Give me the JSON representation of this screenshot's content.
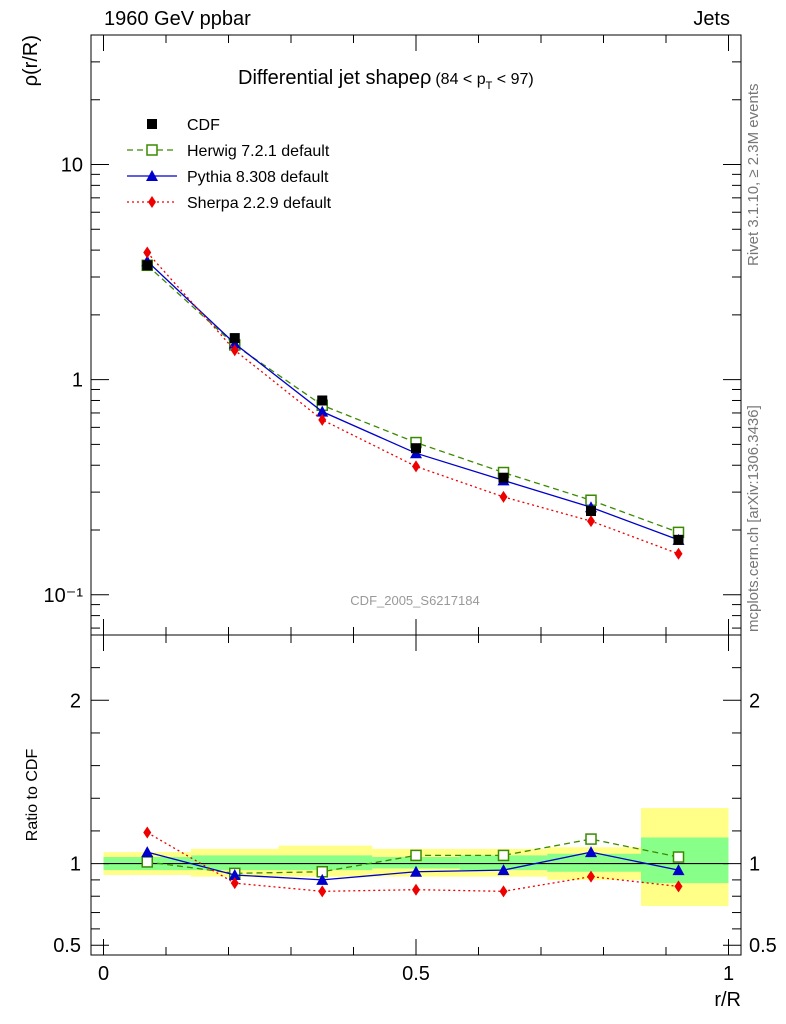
{
  "header": {
    "left": "1960 GeV ppbar",
    "right": "Jets"
  },
  "side_labels": {
    "rivet": "Rivet 3.1.10, ≥ 2.3M events",
    "mcplots": "mcplots.cern.ch [arXiv:1306.3436]"
  },
  "colors": {
    "cdf": "#000000",
    "herwig": "#3a8a00",
    "pythia": "#0000cc",
    "sherpa": "#ee0000",
    "band_inner": "#88ff88",
    "band_outer": "#ffff88"
  },
  "chart_data": [
    {
      "type": "line",
      "title": "Differential jet shapeρ",
      "title_sub": "(84 < p",
      "title_sub_subscript": "T",
      "title_sub_tail": " < 97)",
      "watermark": "CDF_2005_S6217184",
      "ylabel": "ρ(r/R)",
      "xlabel": "",
      "yscale": "log",
      "ylim": [
        0.065,
        40
      ],
      "xlim": [
        -0.02,
        1.02
      ],
      "y_tick_labels": [
        "10",
        "1",
        "10⁻¹"
      ],
      "legend_position": "top-left",
      "x": [
        0.07,
        0.21,
        0.35,
        0.5,
        0.64,
        0.78,
        0.92
      ],
      "series": [
        {
          "name": "CDF",
          "style": "data",
          "values": [
            3.4,
            1.56,
            0.8,
            0.48,
            0.35,
            0.245,
            0.18
          ]
        },
        {
          "name": "Herwig 7.2.1 default",
          "style": "herwig",
          "values": [
            3.4,
            1.45,
            0.76,
            0.51,
            0.37,
            0.275,
            0.195
          ]
        },
        {
          "name": "Pythia 8.308 default",
          "style": "pythia",
          "values": [
            3.55,
            1.47,
            0.71,
            0.455,
            0.34,
            0.255,
            0.18
          ]
        },
        {
          "name": "Sherpa 2.2.9 default",
          "style": "sherpa",
          "values": [
            3.9,
            1.37,
            0.65,
            0.395,
            0.285,
            0.22,
            0.155
          ]
        }
      ]
    },
    {
      "type": "line",
      "ylabel": "Ratio to CDF",
      "xlabel": "r/R",
      "ylim": [
        0.44,
        2.4
      ],
      "xlim": [
        -0.02,
        1.02
      ],
      "y_tick_labels": [
        "0.5",
        "1",
        "2"
      ],
      "x_tick_labels": [
        "0",
        "0.5",
        "1"
      ],
      "bands": [
        {
          "x": [
            0.0,
            0.14
          ],
          "inner": [
            0.96,
            1.04
          ],
          "outer": [
            0.93,
            1.07
          ]
        },
        {
          "x": [
            0.14,
            0.28
          ],
          "inner": [
            0.96,
            1.05
          ],
          "outer": [
            0.92,
            1.09
          ]
        },
        {
          "x": [
            0.28,
            0.43
          ],
          "inner": [
            0.96,
            1.05
          ],
          "outer": [
            0.92,
            1.11
          ]
        },
        {
          "x": [
            0.43,
            0.57
          ],
          "inner": [
            0.97,
            1.04
          ],
          "outer": [
            0.92,
            1.09
          ]
        },
        {
          "x": [
            0.57,
            0.71
          ],
          "inner": [
            0.96,
            1.05
          ],
          "outer": [
            0.92,
            1.09
          ]
        },
        {
          "x": [
            0.71,
            0.86
          ],
          "inner": [
            0.95,
            1.06
          ],
          "outer": [
            0.9,
            1.1
          ]
        },
        {
          "x": [
            0.86,
            1.0
          ],
          "inner": [
            0.88,
            1.16
          ],
          "outer": [
            0.74,
            1.34
          ]
        }
      ],
      "x": [
        0.07,
        0.21,
        0.35,
        0.5,
        0.64,
        0.78,
        0.92
      ],
      "series": [
        {
          "name": "Herwig 7.2.1 default",
          "style": "herwig",
          "values": [
            1.01,
            0.94,
            0.95,
            1.05,
            1.05,
            1.15,
            1.04
          ]
        },
        {
          "name": "Pythia 8.308 default",
          "style": "pythia",
          "values": [
            1.07,
            0.93,
            0.9,
            0.95,
            0.96,
            1.07,
            0.96
          ]
        },
        {
          "name": "Sherpa 2.2.9 default",
          "style": "sherpa",
          "values": [
            1.19,
            0.88,
            0.83,
            0.84,
            0.83,
            0.92,
            0.86
          ]
        }
      ]
    }
  ]
}
